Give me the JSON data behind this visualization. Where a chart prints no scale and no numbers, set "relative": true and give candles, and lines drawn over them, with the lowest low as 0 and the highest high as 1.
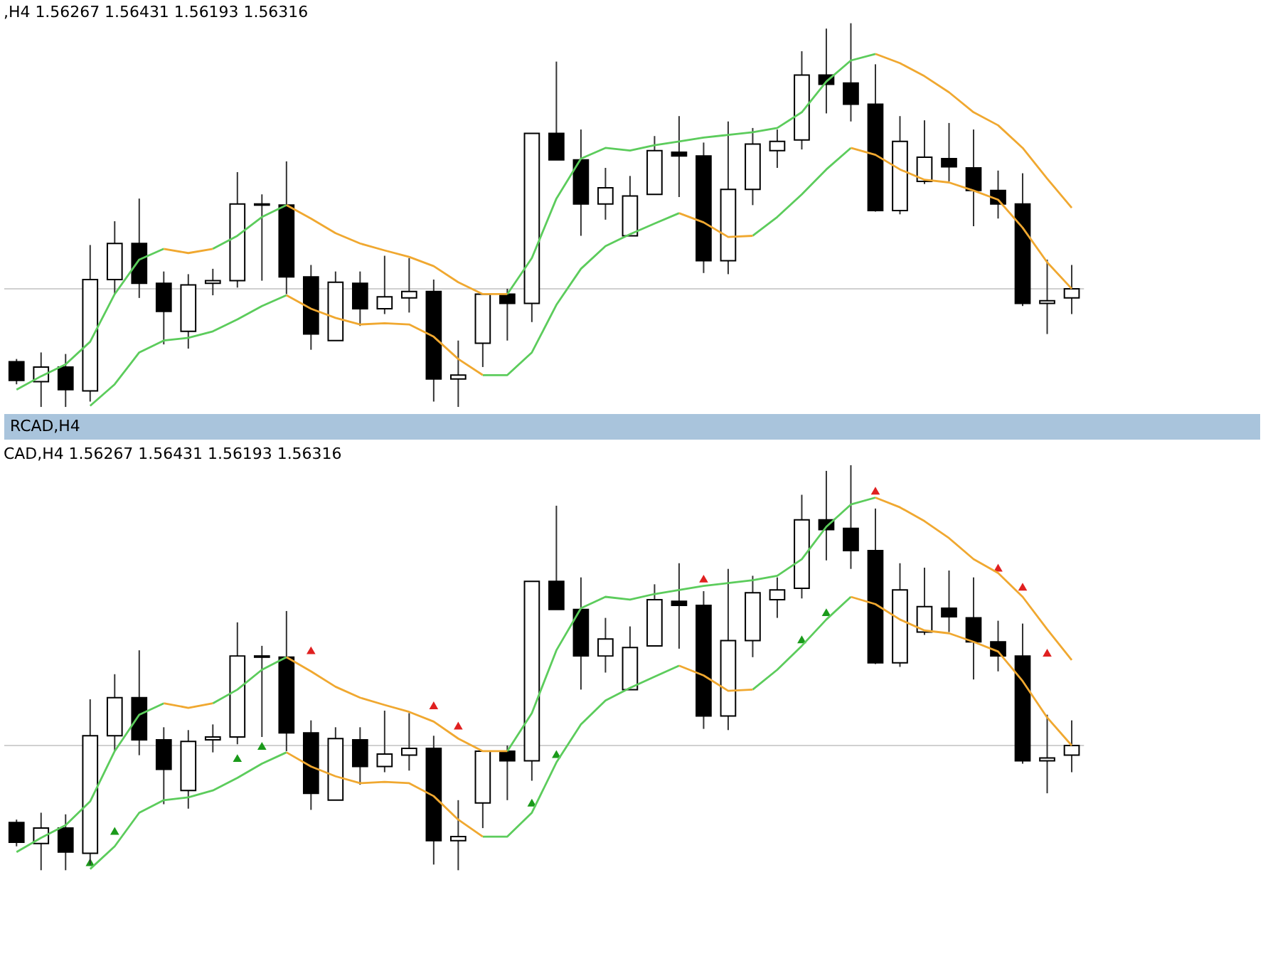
{
  "chart_data": [
    {
      "type": "candlestick",
      "title": ",H4 1.56267 1.56431 1.56193 1.56316",
      "relative": true,
      "categories": [
        null,
        null,
        null,
        null,
        null,
        null,
        null,
        null,
        null,
        null,
        null,
        null,
        null,
        null,
        null,
        null,
        null,
        null,
        null,
        null,
        null,
        null,
        null,
        null,
        null,
        null,
        null,
        null,
        null,
        null,
        null,
        null,
        null,
        null,
        null,
        null,
        null,
        null,
        null,
        null,
        null,
        null,
        null,
        null
      ],
      "ohlc": [
        [
          0.118,
          0.125,
          0.059,
          0.069
        ],
        [
          0.066,
          0.142,
          0,
          0.104
        ],
        [
          0.104,
          0.138,
          0,
          0.045
        ],
        [
          0.042,
          0.422,
          0.014,
          0.332
        ],
        [
          0.332,
          0.484,
          0.294,
          0.426
        ],
        [
          0.426,
          0.543,
          0.284,
          0.322
        ],
        [
          0.322,
          0.353,
          0.163,
          0.249
        ],
        [
          0.197,
          0.346,
          0.152,
          0.318
        ],
        [
          0.322,
          0.36,
          0.291,
          0.329
        ],
        [
          0.329,
          0.612,
          0.311,
          0.529
        ],
        [
          0.529,
          0.554,
          0.329,
          0.526
        ],
        [
          0.526,
          0.64,
          0.294,
          0.339
        ],
        [
          0.339,
          0.37,
          0.149,
          0.19
        ],
        [
          0.173,
          0.353,
          0.173,
          0.325
        ],
        [
          0.322,
          0.353,
          0.211,
          0.256
        ],
        [
          0.256,
          0.394,
          0.242,
          0.287
        ],
        [
          0.284,
          0.388,
          0.246,
          0.301
        ],
        [
          0.301,
          0.332,
          0.014,
          0.073
        ],
        [
          0.073,
          0.173,
          0,
          0.083
        ],
        [
          0.166,
          0.294,
          0.104,
          0.294
        ],
        [
          0.294,
          0.308,
          0.173,
          0.27
        ],
        [
          0.27,
          0.713,
          0.221,
          0.713
        ],
        [
          0.713,
          0.9,
          0.644,
          0.644
        ],
        [
          0.644,
          0.723,
          0.446,
          0.529
        ],
        [
          0.529,
          0.623,
          0.488,
          0.571
        ],
        [
          0.446,
          0.602,
          0.446,
          0.55
        ],
        [
          0.554,
          0.706,
          0.554,
          0.668
        ],
        [
          0.664,
          0.758,
          0.547,
          0.654
        ],
        [
          0.654,
          0.689,
          0.349,
          0.381
        ],
        [
          0.381,
          0.744,
          0.346,
          0.567
        ],
        [
          0.567,
          0.727,
          0.526,
          0.685
        ],
        [
          0.668,
          0.723,
          0.623,
          0.692
        ],
        [
          0.696,
          0.927,
          0.671,
          0.865
        ],
        [
          0.865,
          0.986,
          0.765,
          0.841
        ],
        [
          0.844,
          1,
          0.744,
          0.789
        ],
        [
          0.789,
          0.893,
          0.509,
          0.512
        ],
        [
          0.512,
          0.758,
          0.502,
          0.692
        ],
        [
          0.588,
          0.747,
          0.581,
          0.651
        ],
        [
          0.647,
          0.74,
          0.588,
          0.626
        ],
        [
          0.623,
          0.723,
          0.471,
          0.564
        ],
        [
          0.564,
          0.616,
          0.491,
          0.529
        ],
        [
          0.529,
          0.609,
          0.263,
          0.27
        ],
        [
          0.27,
          0.384,
          0.19,
          0.277
        ],
        [
          0.284,
          0.37,
          0.242,
          0.308
        ]
      ],
      "series": [
        {
          "type": "line",
          "color": "#5ccc5c",
          "values": [
            0.045,
            0.08,
            0.111,
            0.17,
            0.294,
            0.384,
            0.412,
            null,
            0.412,
            0.446,
            0.495,
            0.526,
            null,
            null,
            null,
            null,
            null,
            null,
            null,
            null,
            0.294,
            0.388,
            0.543,
            0.647,
            0.675,
            0.668,
            0.682,
            0.692,
            0.702,
            0.709,
            0.716,
            0.727,
            0.768,
            0.848,
            0.903,
            0.92,
            null,
            null,
            null,
            null,
            null,
            null,
            null,
            null
          ]
        },
        {
          "type": "line",
          "color": "#f0a830",
          "values": [
            null,
            null,
            null,
            null,
            null,
            null,
            0.412,
            0.401,
            0.412,
            null,
            null,
            0.526,
            0.491,
            0.453,
            0.426,
            0.408,
            0.391,
            0.367,
            0.325,
            0.294,
            0.294,
            null,
            null,
            null,
            null,
            null,
            null,
            null,
            null,
            null,
            null,
            null,
            null,
            null,
            null,
            0.92,
            0.896,
            0.862,
            0.82,
            0.768,
            0.734,
            0.675,
            0.595,
            0.519
          ]
        },
        {
          "type": "line",
          "color": "#5ccc5c",
          "values": [
            null,
            null,
            null,
            0.003,
            0.059,
            0.142,
            0.173,
            0.18,
            0.197,
            0.228,
            0.263,
            0.291,
            null,
            null,
            null,
            null,
            null,
            null,
            null,
            0.083,
            0.083,
            0.142,
            0.266,
            0.36,
            0.419,
            0.45,
            0.478,
            0.505,
            null,
            null,
            0.446,
            0.495,
            0.554,
            0.619,
            0.675,
            null,
            null,
            null,
            null,
            null,
            null,
            null,
            null,
            null
          ]
        },
        {
          "type": "line",
          "color": "#f0a830",
          "values": [
            null,
            null,
            null,
            null,
            null,
            null,
            null,
            null,
            null,
            null,
            null,
            0.291,
            0.256,
            0.232,
            0.215,
            0.218,
            0.215,
            0.183,
            0.125,
            0.083,
            null,
            null,
            null,
            null,
            null,
            null,
            null,
            0.505,
            0.481,
            0.443,
            0.446,
            null,
            null,
            null,
            0.675,
            0.657,
            0.619,
            0.592,
            0.585,
            0.564,
            0.54,
            0.467,
            0.377,
            0.308
          ]
        }
      ],
      "ref_lines": [
        {
          "axis": "y",
          "value": 0.308,
          "color": "#d0d0d0"
        }
      ]
    },
    {
      "type": "candlestick",
      "title": "CAD,H4 1.56267 1.56431 1.56193 1.56316",
      "annotations": [
        "RCAD,H4"
      ],
      "relative": true,
      "categories": [
        null,
        null,
        null,
        null,
        null,
        null,
        null,
        null,
        null,
        null,
        null,
        null,
        null,
        null,
        null,
        null,
        null,
        null,
        null,
        null,
        null,
        null,
        null,
        null,
        null,
        null,
        null,
        null,
        null,
        null,
        null,
        null,
        null,
        null,
        null,
        null,
        null,
        null,
        null,
        null,
        null,
        null,
        null,
        null
      ],
      "ohlc": [
        [
          0.118,
          0.125,
          0.059,
          0.069
        ],
        [
          0.066,
          0.142,
          0,
          0.104
        ],
        [
          0.104,
          0.138,
          0,
          0.045
        ],
        [
          0.042,
          0.422,
          0.014,
          0.332
        ],
        [
          0.332,
          0.484,
          0.294,
          0.426
        ],
        [
          0.426,
          0.543,
          0.284,
          0.322
        ],
        [
          0.322,
          0.353,
          0.163,
          0.249
        ],
        [
          0.197,
          0.346,
          0.152,
          0.318
        ],
        [
          0.322,
          0.36,
          0.291,
          0.329
        ],
        [
          0.329,
          0.612,
          0.311,
          0.529
        ],
        [
          0.529,
          0.554,
          0.329,
          0.526
        ],
        [
          0.526,
          0.64,
          0.294,
          0.339
        ],
        [
          0.339,
          0.37,
          0.149,
          0.19
        ],
        [
          0.173,
          0.353,
          0.173,
          0.325
        ],
        [
          0.322,
          0.353,
          0.211,
          0.256
        ],
        [
          0.256,
          0.394,
          0.242,
          0.287
        ],
        [
          0.284,
          0.388,
          0.246,
          0.301
        ],
        [
          0.301,
          0.332,
          0.014,
          0.073
        ],
        [
          0.073,
          0.173,
          0,
          0.083
        ],
        [
          0.166,
          0.294,
          0.104,
          0.294
        ],
        [
          0.294,
          0.308,
          0.173,
          0.27
        ],
        [
          0.27,
          0.713,
          0.221,
          0.713
        ],
        [
          0.713,
          0.9,
          0.644,
          0.644
        ],
        [
          0.644,
          0.723,
          0.446,
          0.529
        ],
        [
          0.529,
          0.623,
          0.488,
          0.571
        ],
        [
          0.446,
          0.602,
          0.446,
          0.55
        ],
        [
          0.554,
          0.706,
          0.554,
          0.668
        ],
        [
          0.664,
          0.758,
          0.547,
          0.654
        ],
        [
          0.654,
          0.689,
          0.349,
          0.381
        ],
        [
          0.381,
          0.744,
          0.346,
          0.567
        ],
        [
          0.567,
          0.727,
          0.526,
          0.685
        ],
        [
          0.668,
          0.723,
          0.623,
          0.692
        ],
        [
          0.696,
          0.927,
          0.671,
          0.865
        ],
        [
          0.865,
          0.986,
          0.765,
          0.841
        ],
        [
          0.844,
          1,
          0.744,
          0.789
        ],
        [
          0.789,
          0.893,
          0.509,
          0.512
        ],
        [
          0.512,
          0.758,
          0.502,
          0.692
        ],
        [
          0.588,
          0.747,
          0.581,
          0.651
        ],
        [
          0.647,
          0.74,
          0.588,
          0.626
        ],
        [
          0.623,
          0.723,
          0.471,
          0.564
        ],
        [
          0.564,
          0.616,
          0.491,
          0.529
        ],
        [
          0.529,
          0.609,
          0.263,
          0.27
        ],
        [
          0.27,
          0.384,
          0.19,
          0.277
        ],
        [
          0.284,
          0.37,
          0.242,
          0.308
        ]
      ],
      "series": [
        {
          "type": "line",
          "color": "#5ccc5c",
          "values": [
            0.045,
            0.08,
            0.111,
            0.17,
            0.294,
            0.384,
            0.412,
            null,
            0.412,
            0.446,
            0.495,
            0.526,
            null,
            null,
            null,
            null,
            null,
            null,
            null,
            null,
            0.294,
            0.388,
            0.543,
            0.647,
            0.675,
            0.668,
            0.682,
            0.692,
            0.702,
            0.709,
            0.716,
            0.727,
            0.768,
            0.848,
            0.903,
            0.92,
            null,
            null,
            null,
            null,
            null,
            null,
            null,
            null
          ]
        },
        {
          "type": "line",
          "color": "#f0a830",
          "values": [
            null,
            null,
            null,
            null,
            null,
            null,
            0.412,
            0.401,
            0.412,
            null,
            null,
            0.526,
            0.491,
            0.453,
            0.426,
            0.408,
            0.391,
            0.367,
            0.325,
            0.294,
            0.294,
            null,
            null,
            null,
            null,
            null,
            null,
            null,
            null,
            null,
            null,
            null,
            null,
            null,
            null,
            0.92,
            0.896,
            0.862,
            0.82,
            0.768,
            0.734,
            0.675,
            0.595,
            0.519
          ]
        },
        {
          "type": "line",
          "color": "#5ccc5c",
          "values": [
            null,
            null,
            null,
            0.003,
            0.059,
            0.142,
            0.173,
            0.18,
            0.197,
            0.228,
            0.263,
            0.291,
            null,
            null,
            null,
            null,
            null,
            null,
            null,
            0.083,
            0.083,
            0.142,
            0.266,
            0.36,
            0.419,
            0.45,
            0.478,
            0.505,
            null,
            null,
            0.446,
            0.495,
            0.554,
            0.619,
            0.675,
            null,
            null,
            null,
            null,
            null,
            null,
            null,
            null,
            null
          ]
        },
        {
          "type": "line",
          "color": "#f0a830",
          "values": [
            null,
            null,
            null,
            null,
            null,
            null,
            null,
            null,
            null,
            null,
            null,
            0.291,
            0.256,
            0.232,
            0.215,
            0.218,
            0.215,
            0.183,
            0.125,
            0.083,
            null,
            null,
            null,
            null,
            null,
            null,
            null,
            0.505,
            0.481,
            0.443,
            0.446,
            null,
            null,
            null,
            0.675,
            0.657,
            0.619,
            0.592,
            0.585,
            0.564,
            0.54,
            0.467,
            0.377,
            0.308
          ]
        },
        {
          "type": "scatter",
          "marker": "triangle",
          "color": "#e02020",
          "values": [
            null,
            null,
            null,
            null,
            null,
            null,
            null,
            null,
            null,
            null,
            null,
            null,
            0.543,
            null,
            null,
            null,
            null,
            0.407,
            0.357,
            null,
            null,
            null,
            null,
            null,
            null,
            null,
            null,
            null,
            0.72,
            null,
            null,
            null,
            null,
            null,
            null,
            0.937,
            null,
            null,
            null,
            null,
            0.747,
            0.7,
            0.537,
            null
          ]
        },
        {
          "type": "scatter",
          "marker": "triangle",
          "color": "#1a9a1a",
          "values": [
            null,
            null,
            null,
            0.02,
            0.097,
            null,
            null,
            null,
            null,
            0.277,
            0.307,
            null,
            null,
            null,
            null,
            null,
            null,
            null,
            null,
            null,
            null,
            0.167,
            0.287,
            null,
            null,
            null,
            null,
            null,
            null,
            null,
            null,
            null,
            0.57,
            0.637,
            null,
            null,
            null,
            null,
            null,
            null,
            null,
            null,
            null,
            null
          ]
        }
      ],
      "ref_lines": [
        {
          "axis": "y",
          "value": 0.308,
          "color": "#d0d0d0"
        }
      ]
    }
  ]
}
